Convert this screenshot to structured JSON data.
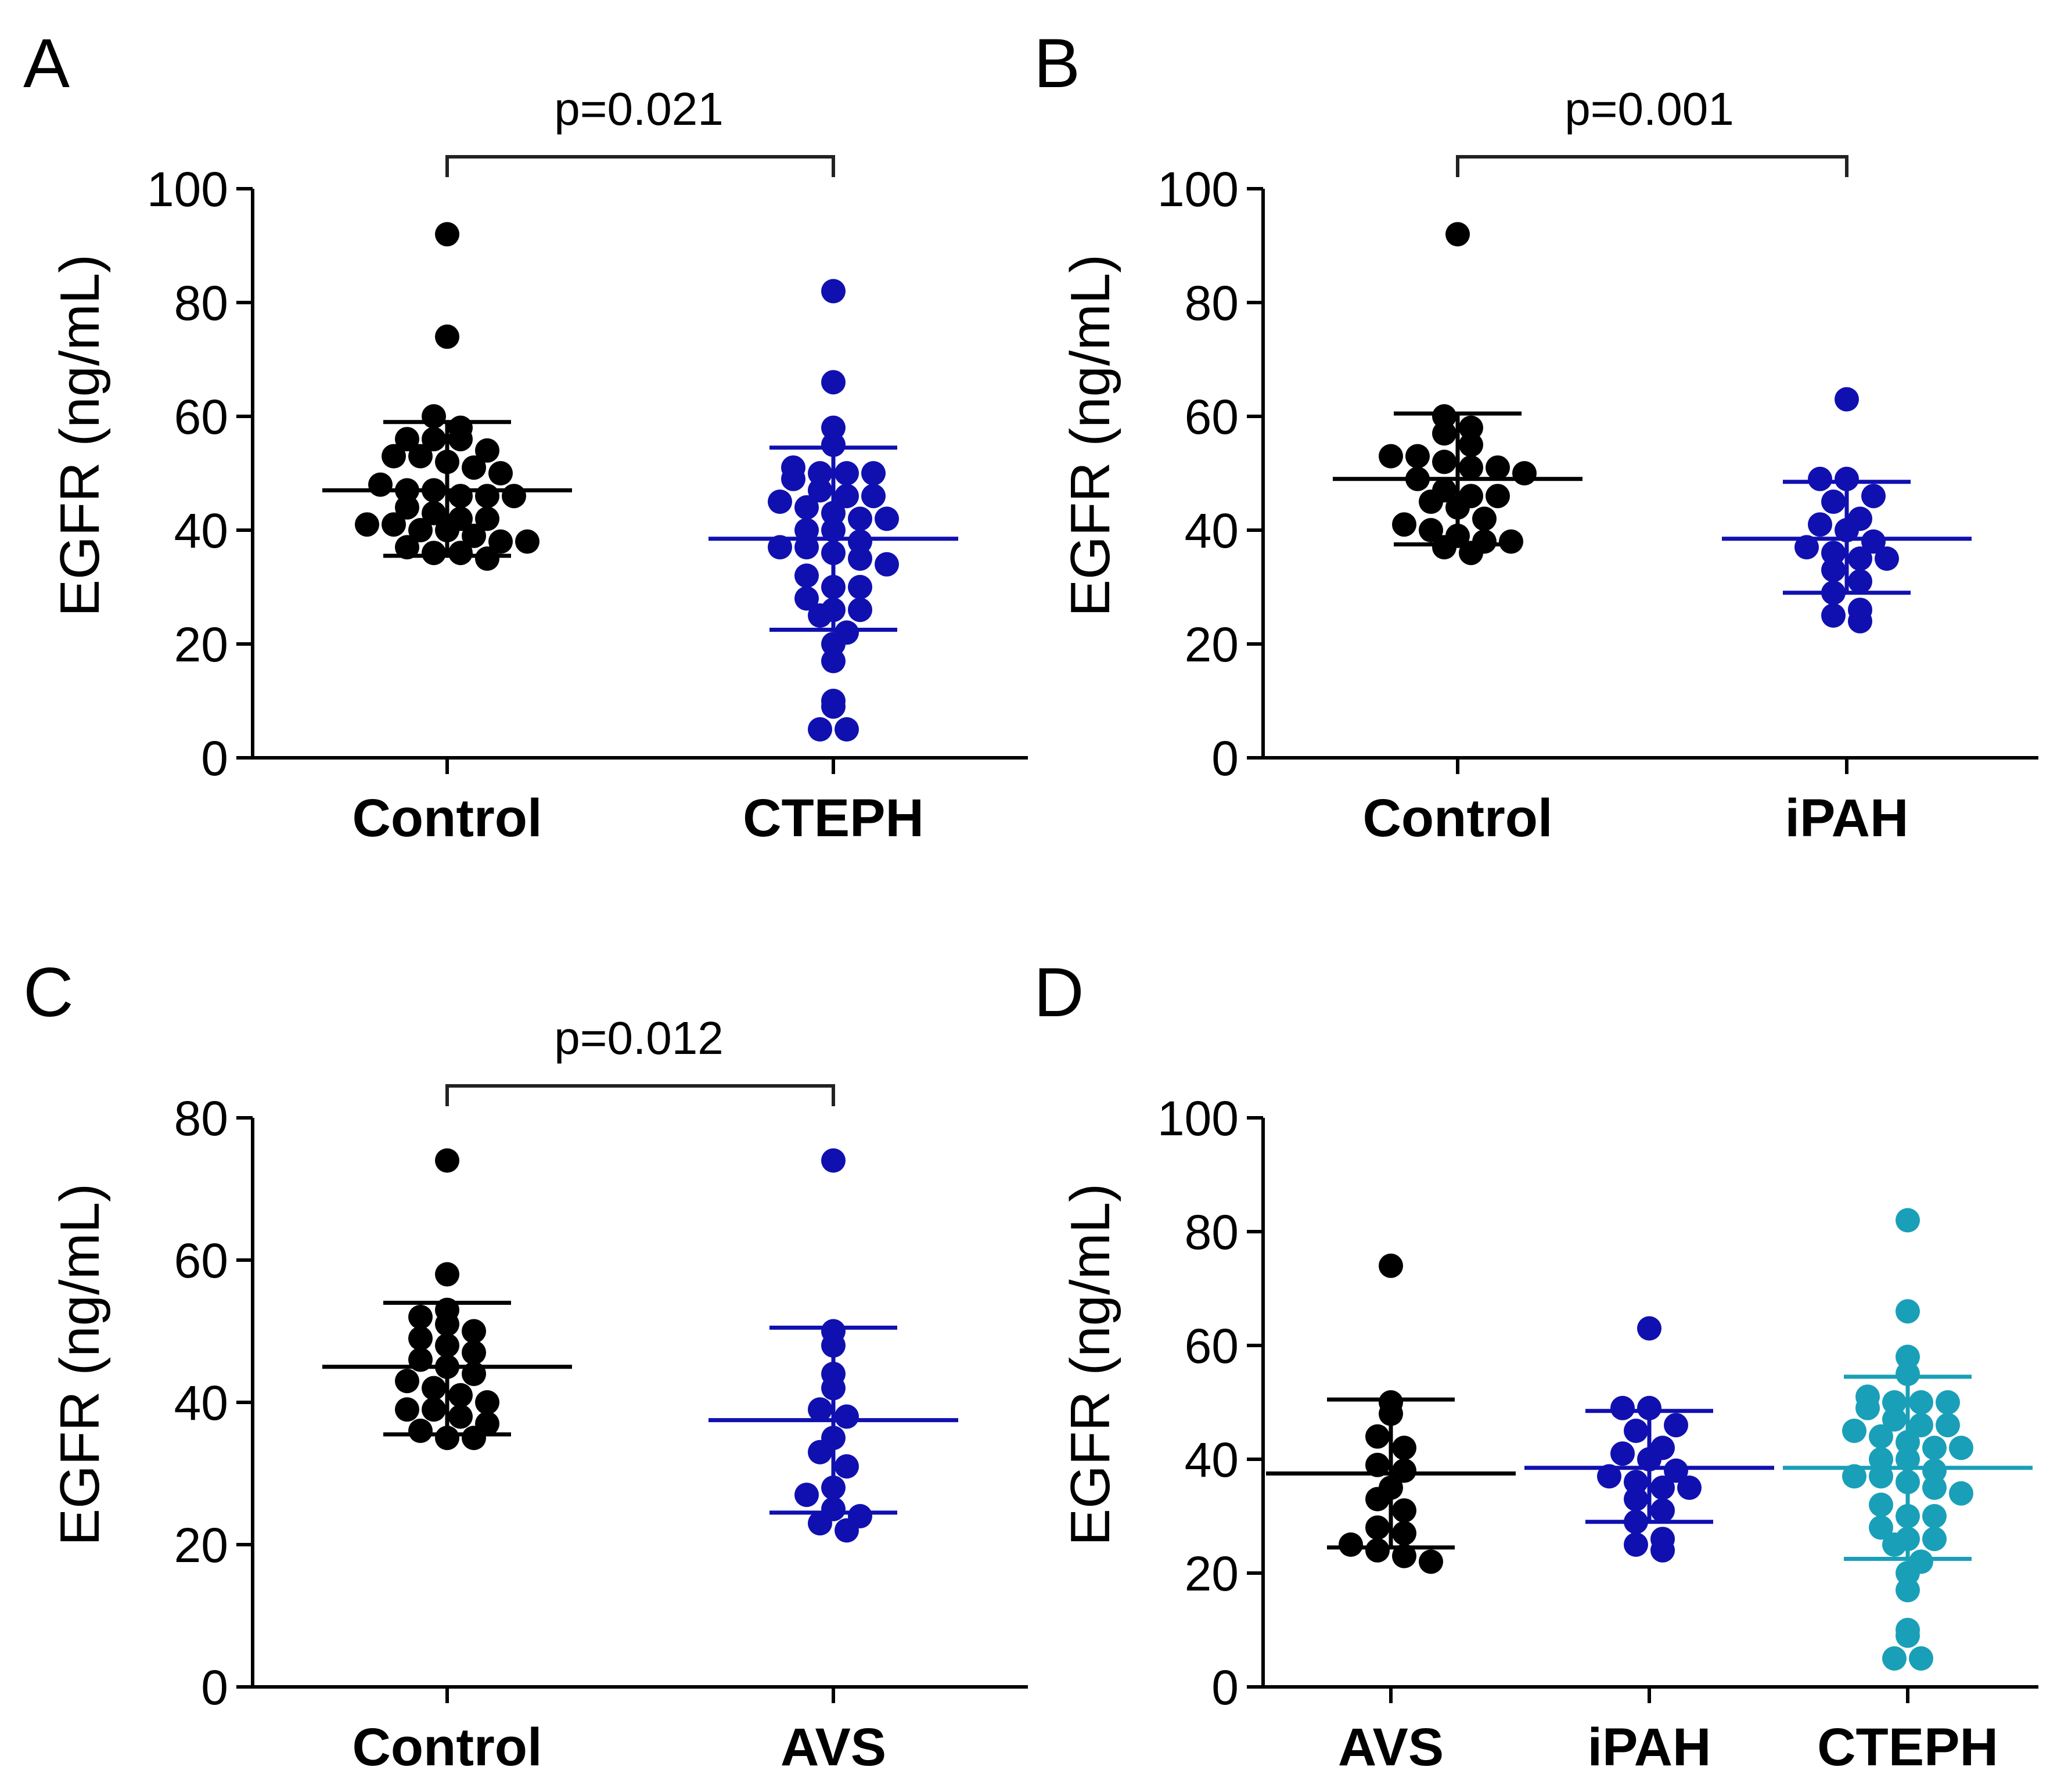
{
  "chart_data": [
    {
      "type": "scatter",
      "panel": "A",
      "ylabel": "EGFR (ng/mL)",
      "ylim": [
        0,
        100
      ],
      "yticks": [
        0,
        20,
        40,
        60,
        80,
        100
      ],
      "categories": [
        "Control",
        "CTEPH"
      ],
      "comparison": {
        "from": "Control",
        "to": "CTEPH",
        "label": "p=0.021"
      },
      "series": [
        {
          "name": "Control",
          "color": "#000000",
          "mean": 47,
          "sd_low": 35.5,
          "sd_high": 59,
          "points": [
            92,
            74,
            60,
            58,
            56,
            56,
            56,
            54,
            53,
            53,
            52,
            51,
            50,
            48,
            47,
            47,
            46,
            46,
            46,
            44,
            43,
            42,
            42,
            41,
            41,
            40,
            40,
            39,
            38,
            38,
            37,
            36,
            36,
            35
          ]
        },
        {
          "name": "CTEPH",
          "color": "#1010b0",
          "mean": 38.5,
          "sd_low": 22.5,
          "sd_high": 54.5,
          "points": [
            82,
            66,
            58,
            55,
            51,
            50,
            50,
            50,
            49,
            47,
            46,
            46,
            45,
            44,
            43,
            42,
            42,
            40,
            40,
            38,
            37,
            37,
            36,
            35,
            34,
            32,
            30,
            30,
            28,
            26,
            26,
            25,
            22,
            20,
            17,
            10,
            9,
            5,
            5
          ]
        }
      ]
    },
    {
      "type": "scatter",
      "panel": "B",
      "ylabel": "EGFR (ng/mL)",
      "ylim": [
        0,
        100
      ],
      "yticks": [
        0,
        20,
        40,
        60,
        80,
        100
      ],
      "categories": [
        "Control",
        "iPAH"
      ],
      "comparison": {
        "from": "Control",
        "to": "iPAH",
        "label": "p=0.001"
      },
      "series": [
        {
          "name": "Control",
          "color": "#000000",
          "mean": 49,
          "sd_low": 37.5,
          "sd_high": 60.5,
          "points": [
            92,
            60,
            58,
            57,
            55,
            53,
            53,
            52,
            51,
            51,
            50,
            49,
            47,
            46,
            46,
            45,
            44,
            42,
            41,
            40,
            39,
            38,
            38,
            37,
            36
          ]
        },
        {
          "name": "iPAH",
          "color": "#1010b0",
          "mean": 38.5,
          "sd_low": 29,
          "sd_high": 48.5,
          "points": [
            63,
            49,
            49,
            46,
            45,
            42,
            41,
            40,
            38,
            37,
            36,
            35,
            35,
            33,
            31,
            29,
            26,
            25,
            24
          ]
        }
      ]
    },
    {
      "type": "scatter",
      "panel": "C",
      "ylabel": "EGFR (ng/mL)",
      "ylim": [
        0,
        80
      ],
      "yticks": [
        0,
        20,
        40,
        60,
        80
      ],
      "categories": [
        "Control",
        "AVS"
      ],
      "comparison": {
        "from": "Control",
        "to": "AVS",
        "label": "p=0.012"
      },
      "series": [
        {
          "name": "Control",
          "color": "#000000",
          "mean": 45,
          "sd_low": 35.5,
          "sd_high": 54,
          "points": [
            74,
            58,
            53,
            52,
            51,
            50,
            49,
            48,
            47,
            46,
            45,
            44,
            43,
            42,
            41,
            40,
            39,
            39,
            38,
            37,
            36,
            35,
            35
          ]
        },
        {
          "name": "AVS",
          "color": "#1010b0",
          "mean": 37.5,
          "sd_low": 24.5,
          "sd_high": 50.5,
          "points": [
            74,
            50,
            48,
            44,
            42,
            39,
            38,
            35,
            33,
            31,
            28,
            27,
            25,
            24,
            23,
            22
          ]
        }
      ]
    },
    {
      "type": "scatter",
      "panel": "D",
      "ylabel": "EGFR (ng/mL)",
      "ylim": [
        0,
        100
      ],
      "yticks": [
        0,
        20,
        40,
        60,
        80,
        100
      ],
      "categories": [
        "AVS",
        "iPAH",
        "CTEPH"
      ],
      "series": [
        {
          "name": "AVS",
          "color": "#000000",
          "mean": 37.5,
          "sd_low": 24.5,
          "sd_high": 50.5,
          "points": [
            74,
            50,
            48,
            44,
            42,
            39,
            38,
            35,
            33,
            31,
            28,
            27,
            25,
            24,
            23,
            22
          ]
        },
        {
          "name": "iPAH",
          "color": "#1010b0",
          "mean": 38.5,
          "sd_low": 29,
          "sd_high": 48.5,
          "points": [
            63,
            49,
            49,
            46,
            45,
            42,
            41,
            40,
            38,
            37,
            36,
            35,
            35,
            33,
            31,
            29,
            26,
            25,
            24
          ]
        },
        {
          "name": "CTEPH",
          "color": "#1a9fb8",
          "mean": 38.5,
          "sd_low": 22.5,
          "sd_high": 54.5,
          "points": [
            82,
            66,
            58,
            55,
            51,
            50,
            50,
            50,
            49,
            47,
            46,
            46,
            45,
            44,
            43,
            42,
            42,
            40,
            40,
            38,
            37,
            37,
            36,
            35,
            34,
            32,
            30,
            30,
            28,
            26,
            26,
            25,
            22,
            20,
            17,
            10,
            9,
            5,
            5
          ]
        }
      ]
    }
  ]
}
